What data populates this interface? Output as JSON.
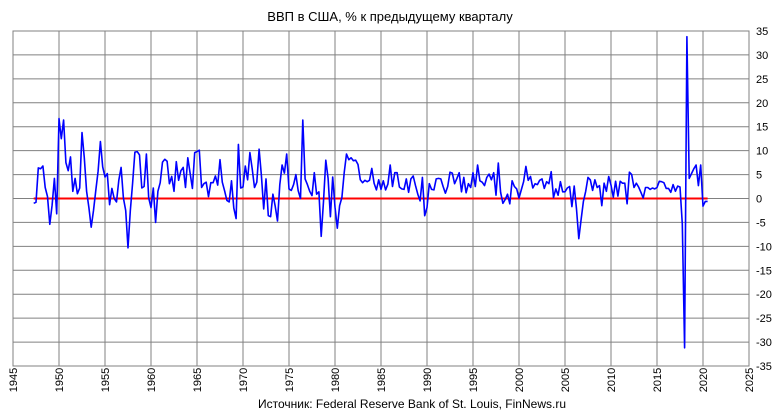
{
  "chart_data": {
    "type": "line",
    "title": "ВВП в США, % к предыдущему кварталу",
    "source": "Источник: Federal Reserve Bank of St. Louis, FinNews.ru",
    "xlabel": "",
    "ylabel": "",
    "xlim": [
      1945,
      2025
    ],
    "ylim": [
      -35,
      35
    ],
    "x_ticks": [
      1945,
      1950,
      1955,
      1960,
      1965,
      1970,
      1975,
      1980,
      1985,
      1990,
      1995,
      2000,
      2005,
      2010,
      2015,
      2020,
      2025
    ],
    "y_ticks": [
      35,
      30,
      25,
      20,
      15,
      10,
      5,
      0,
      -5,
      -10,
      -15,
      -20,
      -25,
      -30,
      -35
    ],
    "grid": true,
    "colors": {
      "series": "#0000ff",
      "zero_line": "#ff0000",
      "grid": "#808080",
      "plot_bg": "#ffffff"
    },
    "series": [
      {
        "start_year": 1947.25,
        "step": 0.25,
        "values": [
          -1,
          -0.8,
          6.4,
          6.2,
          6.8,
          2.3,
          0.4,
          -5.4,
          -1.4,
          4.2,
          -3.2,
          16.7,
          12.5,
          16.4,
          7.5,
          5.8,
          8.7,
          1.5,
          4.2,
          1,
          2.2,
          13.8,
          8.5,
          1.5,
          -1.9,
          -6,
          -2.5,
          1.7,
          5.7,
          11.9,
          6.6,
          4.5,
          5.2,
          -1.3,
          2.1,
          0,
          -0.7,
          3.8,
          6.5,
          0.1,
          -2.5,
          -10.3,
          -2.6,
          3.2,
          9.7,
          9.8,
          9.1,
          2.2,
          2.5,
          9.3,
          0.1,
          -1.9,
          2.2,
          -5,
          1.5,
          3.3,
          7.6,
          8.2,
          7.8,
          3.1,
          4.6,
          1.5,
          7.7,
          3.8,
          5.8,
          6.5,
          2.3,
          8.5,
          5.3,
          2.1,
          9.6,
          9.8,
          10.1,
          2.3,
          3.1,
          3.4,
          0.4,
          3.3,
          3.3,
          4.7,
          2.8,
          8.1,
          3.4,
          1.6,
          -0.4,
          -0.7,
          3.7,
          -2,
          -4.2,
          11.3,
          2.2,
          2.4,
          6.8,
          3.9,
          9.6,
          6.2,
          2.3,
          3.4,
          10.3,
          4.8,
          -2.2,
          4.1,
          -3.6,
          -3.8,
          0.9,
          -1.6,
          -4.7,
          2.9,
          7,
          5.3,
          9.3,
          2,
          1.7,
          2.9,
          5,
          1.6,
          0,
          16.4,
          4.1,
          2.9,
          1.5,
          0.6,
          5.4,
          0.9,
          1.4,
          -7.9,
          -0.6,
          8,
          4.2,
          -3.8,
          4.5,
          -1.8,
          -6.2,
          -1.5,
          0.2,
          5.4,
          9.3,
          8.1,
          8.5,
          7.9,
          8,
          7.1,
          3.9,
          3.3,
          3.8,
          3.5,
          3.8,
          6.3,
          3.2,
          1.8,
          3.9,
          1.9,
          3.7,
          1.8,
          3,
          7,
          2.5,
          5.4,
          5.4,
          2.4,
          2,
          1.9,
          4.1,
          1.3,
          4.1,
          4.7,
          2.7,
          0.9,
          -0.5,
          4.4,
          -3.6,
          -1.9,
          3.1,
          1.9,
          1.8,
          4.1,
          4.2,
          4.1,
          2.5,
          1.1,
          2.5,
          5.5,
          5.3,
          3.1,
          4.2,
          5.4,
          1.4,
          4.4,
          1.2,
          3.1,
          2.3,
          5.4,
          2.5,
          7,
          3.7,
          3.4,
          2.7,
          4.4,
          5.1,
          3.9,
          5.4,
          0.7,
          7.4,
          1.3,
          -1,
          -0.2,
          0.9,
          -1.1,
          3.7,
          2.5,
          2,
          0.1,
          1.8,
          3.5,
          6.7,
          3.8,
          4.6,
          2.2,
          3.1,
          2.9,
          3.8,
          4.1,
          2.1,
          3.5,
          3.1,
          5.6,
          0.2,
          2,
          0.7,
          3.5,
          1.4,
          1.4,
          2.2,
          2.5,
          -1.7,
          2.6,
          -2.2,
          -8.4,
          -4.4,
          -0.6,
          1.5,
          4.4,
          3.9,
          1.7,
          3.9,
          2.3,
          2.7,
          -1.5,
          3.2,
          1.5,
          4.6,
          2.8,
          0.3,
          3.6,
          0.5,
          3.6,
          3.2,
          3.2,
          -1.1,
          5.5,
          5,
          2.3,
          3.2,
          2.4,
          1.3,
          0.1,
          2.3,
          2.3,
          1.9,
          2.2,
          2,
          2.3,
          3.6,
          3.5,
          3.3,
          2.1,
          2.1,
          1.3,
          2.9,
          1.5,
          2.6,
          2.4,
          -5.3,
          -31.2,
          33.8,
          4.2,
          5.2,
          6.2,
          7,
          2.7,
          7,
          -1.6,
          -0.6,
          -0.6
        ]
      }
    ]
  }
}
